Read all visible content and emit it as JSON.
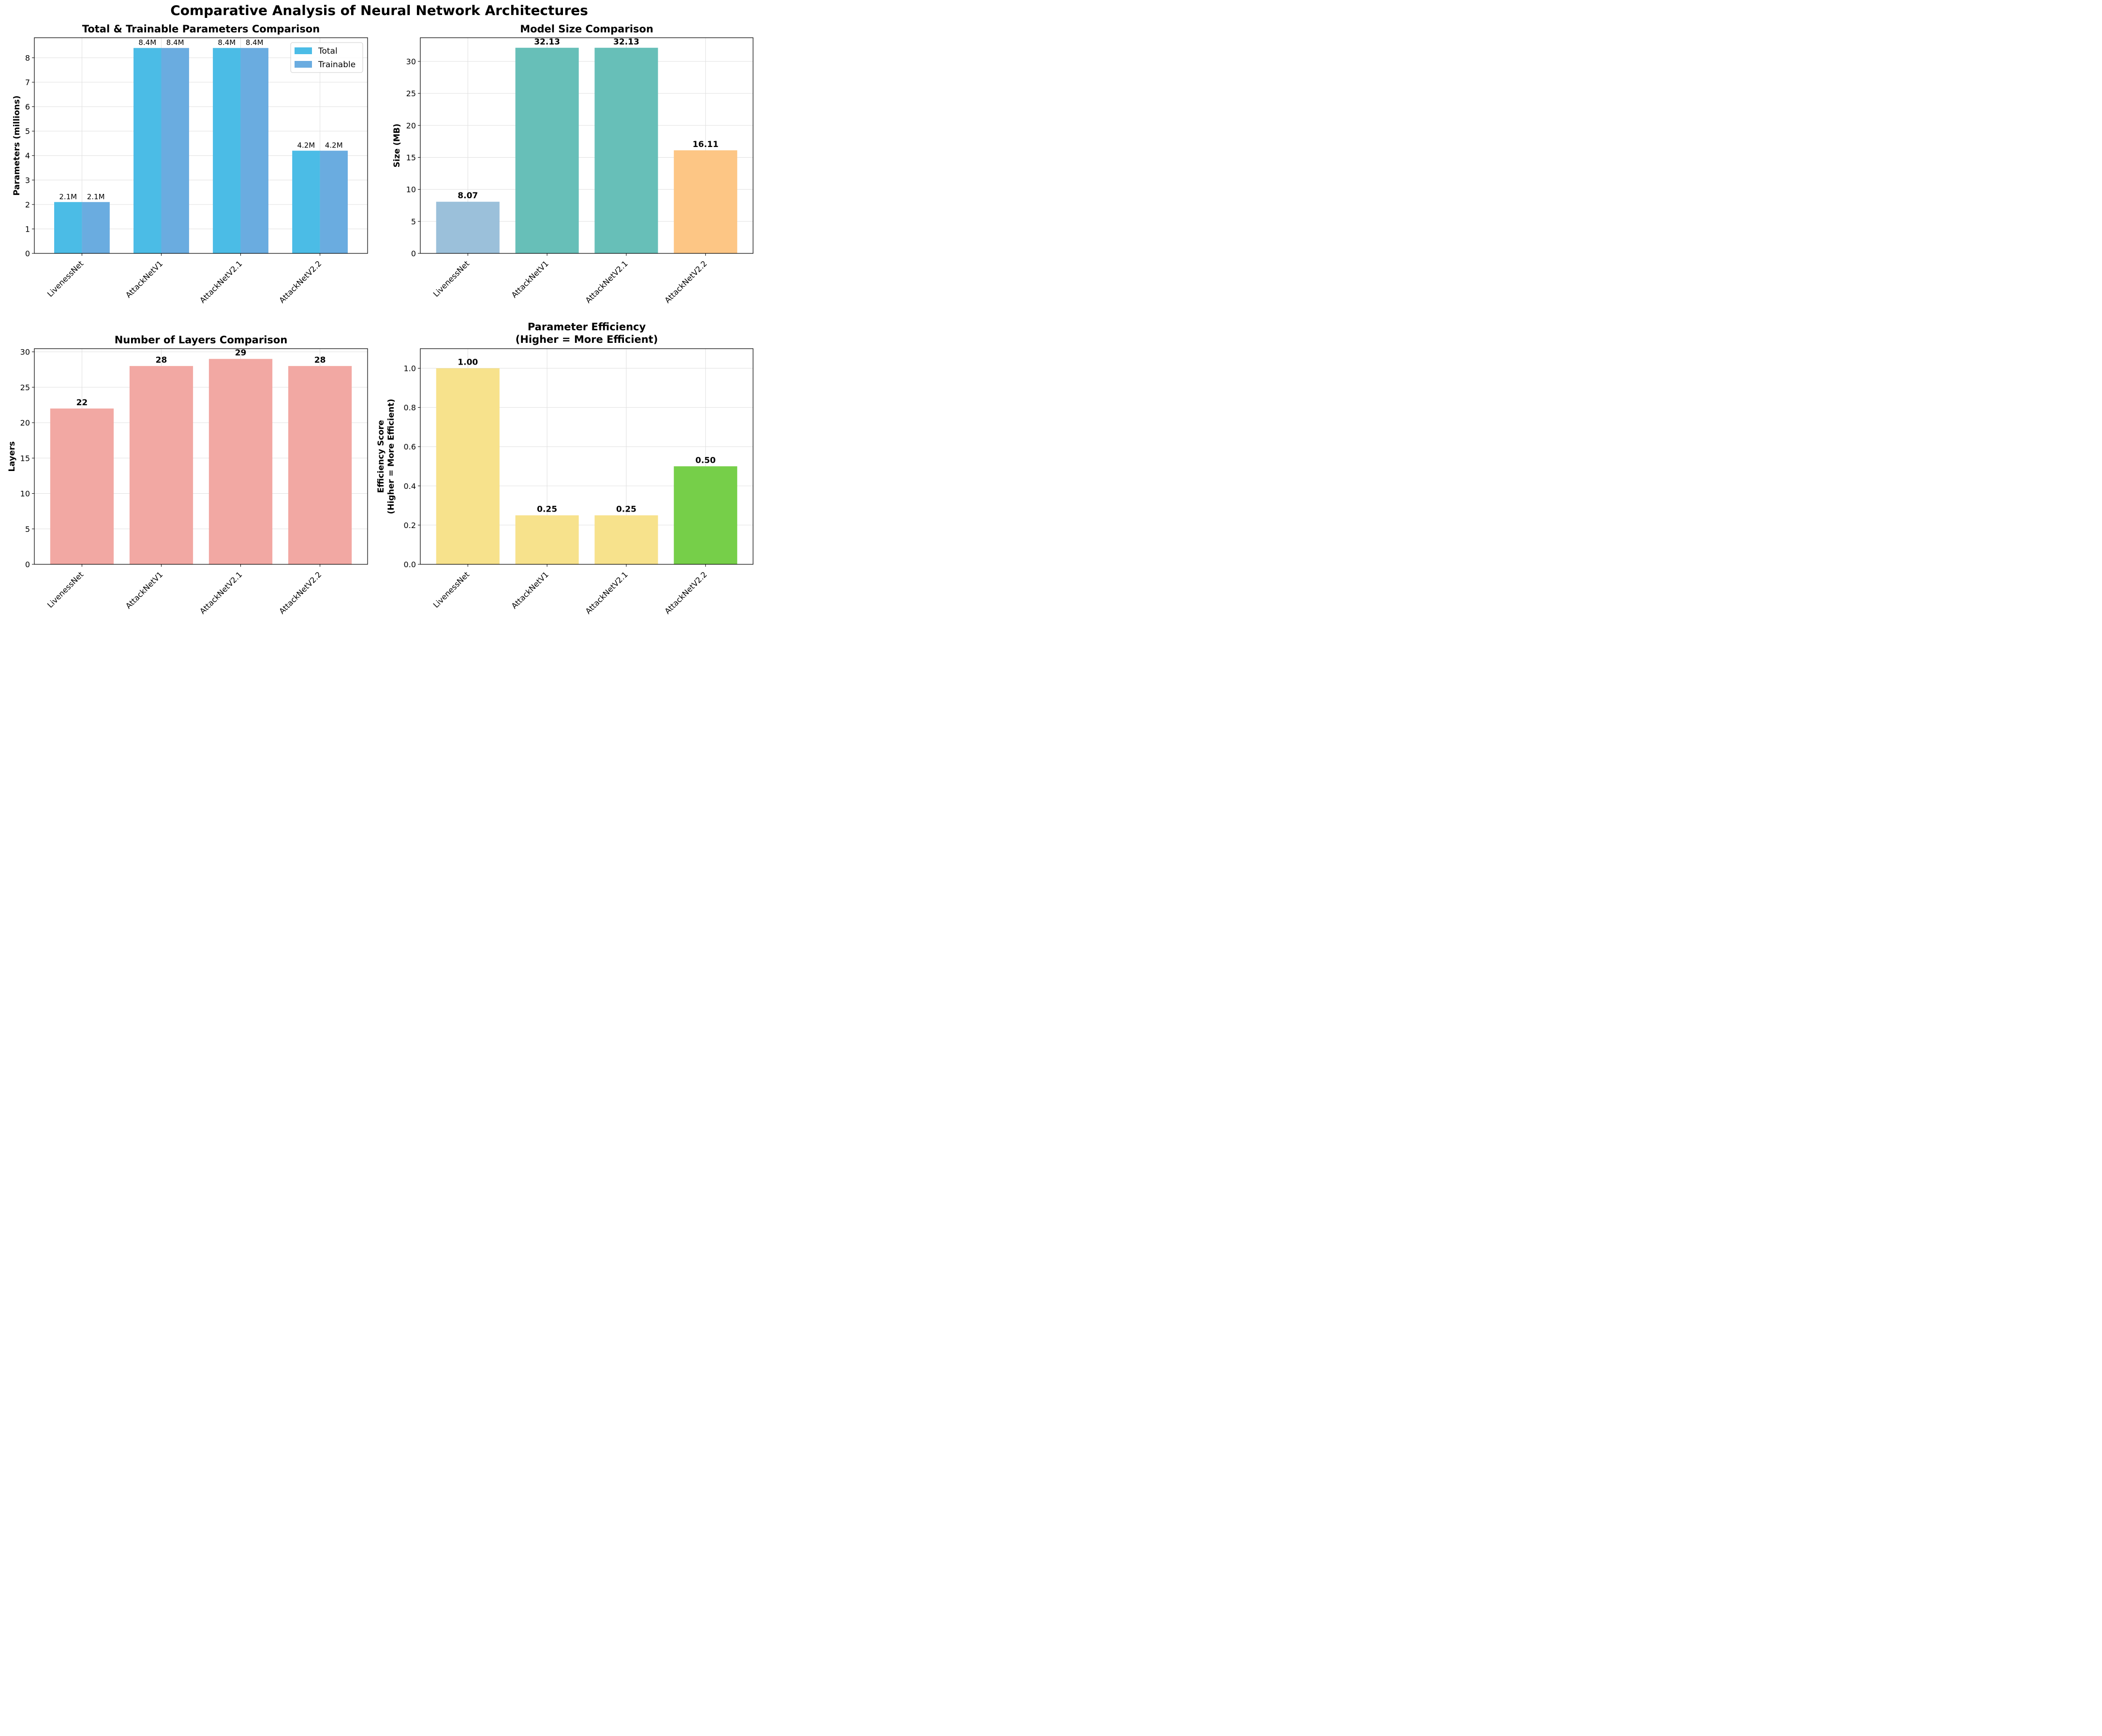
{
  "figure": {
    "title": "Comparative Analysis of Neural Network Architectures"
  },
  "chart_data": [
    {
      "type": "bar",
      "title": "Total & Trainable Parameters Comparison",
      "xlabel": "",
      "ylabel": "Parameters (millions)",
      "categories": [
        "LivenessNet",
        "AttackNetV1",
        "AttackNetV2.1",
        "AttackNetV2.2"
      ],
      "series": [
        {
          "name": "Total",
          "values": [
            2.1,
            8.4,
            8.4,
            4.2
          ],
          "labels": [
            "2.1M",
            "8.4M",
            "8.4M",
            "4.2M"
          ],
          "color": "#4bbce6"
        },
        {
          "name": "Trainable",
          "values": [
            2.1,
            8.4,
            8.4,
            4.2
          ],
          "labels": [
            "2.1M",
            "8.4M",
            "8.4M",
            "4.2M"
          ],
          "color": "#6aace0"
        }
      ],
      "ylim": [
        0,
        8.82
      ],
      "yticks": [
        0,
        1,
        2,
        3,
        4,
        5,
        6,
        7,
        8
      ],
      "ytick_labels": [
        "0",
        "1",
        "2",
        "3",
        "4",
        "5",
        "6",
        "7",
        "8"
      ],
      "legend": "top-right",
      "grid": true
    },
    {
      "type": "bar",
      "title": "Model Size Comparison",
      "xlabel": "",
      "ylabel": "Size (MB)",
      "categories": [
        "LivenessNet",
        "AttackNetV1",
        "AttackNetV2.1",
        "AttackNetV2.2"
      ],
      "values": [
        8.07,
        32.13,
        32.13,
        16.11
      ],
      "labels": [
        "8.07",
        "32.13",
        "32.13",
        "16.11"
      ],
      "colors": [
        "#9bc0da",
        "#67bfb8",
        "#67bfb8",
        "#fdc685"
      ],
      "ylim": [
        0,
        33.7
      ],
      "yticks": [
        0,
        5,
        10,
        15,
        20,
        25,
        30
      ],
      "ytick_labels": [
        "0",
        "5",
        "10",
        "15",
        "20",
        "25",
        "30"
      ],
      "grid": true
    },
    {
      "type": "bar",
      "title": "Number of Layers Comparison",
      "xlabel": "",
      "ylabel": "Layers",
      "categories": [
        "LivenessNet",
        "AttackNetV1",
        "AttackNetV2.1",
        "AttackNetV2.2"
      ],
      "values": [
        22,
        28,
        29,
        28
      ],
      "labels": [
        "22",
        "28",
        "29",
        "28"
      ],
      "colors": [
        "#f2a8a3",
        "#f2a8a3",
        "#f2a8a3",
        "#f2a8a3"
      ],
      "ylim": [
        0,
        30.45
      ],
      "yticks": [
        0,
        5,
        10,
        15,
        20,
        25,
        30
      ],
      "ytick_labels": [
        "0",
        "5",
        "10",
        "15",
        "20",
        "25",
        "30"
      ],
      "grid": true
    },
    {
      "type": "bar",
      "title": "Parameter Efficiency\n(Higher = More Efficient)",
      "title_lines": [
        "Parameter Efficiency",
        "(Higher = More Efficient)"
      ],
      "xlabel": "",
      "ylabel": "Efficiency Score\n(Higher = More Efficient)",
      "ylabel_lines": [
        "Efficiency Score",
        "(Higher = More Efficient)"
      ],
      "categories": [
        "LivenessNet",
        "AttackNetV1",
        "AttackNetV2.1",
        "AttackNetV2.2"
      ],
      "values": [
        1.0,
        0.25,
        0.25,
        0.5
      ],
      "labels": [
        "1.00",
        "0.25",
        "0.25",
        "0.50"
      ],
      "colors": [
        "#f7e28c",
        "#f7e28c",
        "#f7e28c",
        "#76cf49"
      ],
      "ylim": [
        0,
        1.1
      ],
      "yticks": [
        0,
        0.2,
        0.4,
        0.6,
        0.8,
        1.0
      ],
      "ytick_labels": [
        "0.0",
        "0.2",
        "0.4",
        "0.6",
        "0.8",
        "1.0"
      ],
      "grid": true
    }
  ]
}
